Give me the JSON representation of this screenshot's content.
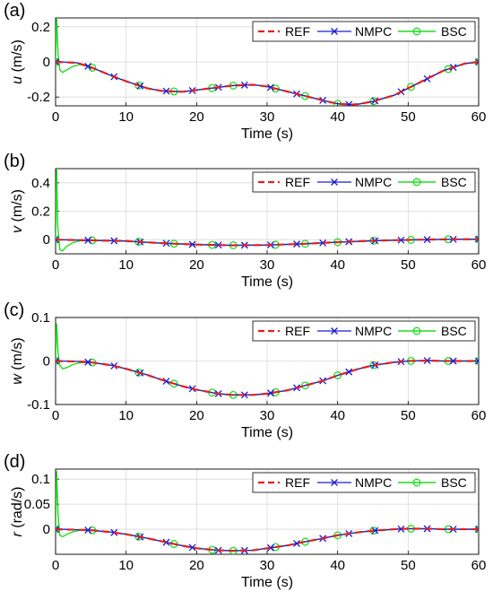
{
  "legend_labels": [
    "REF",
    "NMPC",
    "BSC"
  ],
  "colors": {
    "REF": "#e02020",
    "NMPC": "#1a1ad6",
    "BSC": "#1fdc1f",
    "grid": "#d8d8d8",
    "axis": "#000000"
  },
  "chart_data": [
    {
      "type": "line",
      "panel_label": "(a)",
      "ylabel_var": "u",
      "ylabel_unit": " (m/s)",
      "xlabel": "Time (s)",
      "xlim": [
        0,
        60
      ],
      "ylim": [
        -0.25,
        0.25
      ],
      "xticks": [
        0,
        10,
        20,
        30,
        40,
        50,
        60
      ],
      "yticks": [
        -0.2,
        0,
        0.2
      ],
      "ytick_labels": [
        "-0.2",
        "0",
        "0.2"
      ],
      "grid": true,
      "legend_position": "top-right",
      "series": [
        {
          "name": "REF",
          "x": [
            0,
            3,
            5,
            8,
            10,
            13,
            15,
            18,
            20,
            23,
            25,
            28,
            30,
            33,
            35,
            38,
            40,
            42,
            43,
            45,
            48,
            50,
            53,
            55,
            58,
            60
          ],
          "y": [
            0.0,
            -0.005,
            -0.03,
            -0.08,
            -0.11,
            -0.15,
            -0.165,
            -0.17,
            -0.16,
            -0.145,
            -0.135,
            -0.13,
            -0.14,
            -0.17,
            -0.19,
            -0.22,
            -0.238,
            -0.243,
            -0.24,
            -0.225,
            -0.19,
            -0.15,
            -0.09,
            -0.05,
            -0.01,
            0.0
          ]
        },
        {
          "name": "NMPC",
          "x": [
            0,
            0.3,
            0.8,
            1.5,
            3,
            5,
            8,
            10,
            13,
            15,
            18,
            20,
            23,
            25,
            28,
            30,
            33,
            35,
            38,
            40,
            42,
            43,
            45,
            48,
            50,
            53,
            55,
            58,
            60
          ],
          "y": [
            0.0,
            0.005,
            0.0,
            -0.002,
            -0.005,
            -0.03,
            -0.08,
            -0.11,
            -0.15,
            -0.165,
            -0.17,
            -0.16,
            -0.145,
            -0.135,
            -0.13,
            -0.14,
            -0.17,
            -0.19,
            -0.22,
            -0.238,
            -0.243,
            -0.24,
            -0.225,
            -0.19,
            -0.15,
            -0.09,
            -0.05,
            -0.01,
            0.0
          ],
          "markers_x": [
            0,
            4.6,
            8.3,
            12,
            15.7,
            19.4,
            23.1,
            26.8,
            30.5,
            34.2,
            37.9,
            41.6,
            45.3,
            49,
            52.7,
            56.4,
            60
          ]
        },
        {
          "name": "BSC",
          "x": [
            0,
            0.15,
            0.35,
            0.6,
            1,
            1.6,
            2.5,
            3.5,
            5,
            8,
            10,
            13,
            15,
            18,
            20,
            23,
            25,
            28,
            30,
            33,
            35,
            38,
            40,
            42,
            43,
            45,
            48,
            50,
            53,
            55,
            58,
            60
          ],
          "y": [
            0.0,
            0.25,
            0.05,
            -0.045,
            -0.06,
            -0.045,
            -0.025,
            -0.015,
            -0.03,
            -0.08,
            -0.11,
            -0.15,
            -0.165,
            -0.17,
            -0.16,
            -0.145,
            -0.135,
            -0.13,
            -0.14,
            -0.17,
            -0.19,
            -0.22,
            -0.238,
            -0.243,
            -0.24,
            -0.225,
            -0.19,
            -0.15,
            -0.09,
            -0.05,
            -0.01,
            0.0
          ],
          "markers_x": [
            0,
            5.2,
            11.8,
            16.8,
            22.2,
            25.2,
            31.2,
            35.4,
            40,
            45.1,
            50.4,
            55.7,
            60
          ]
        }
      ]
    },
    {
      "type": "line",
      "panel_label": "(b)",
      "ylabel_var": "v",
      "ylabel_unit": " (m/s)",
      "xlabel": "Time (s)",
      "xlim": [
        0,
        60
      ],
      "ylim": [
        -0.1,
        0.5
      ],
      "xticks": [
        0,
        10,
        20,
        30,
        40,
        50,
        60
      ],
      "yticks": [
        0,
        0.2,
        0.4
      ],
      "ytick_labels": [
        "0",
        "0.2",
        "0.4"
      ],
      "grid": true,
      "legend_position": "top-right",
      "series": [
        {
          "name": "REF",
          "x": [
            0,
            5,
            10,
            15,
            20,
            25,
            30,
            35,
            40,
            45,
            50,
            55,
            60
          ],
          "y": [
            0.0,
            -0.005,
            -0.01,
            -0.025,
            -0.035,
            -0.04,
            -0.038,
            -0.03,
            -0.018,
            -0.008,
            -0.002,
            0.002,
            0.003
          ]
        },
        {
          "name": "NMPC",
          "x": [
            0,
            5,
            10,
            15,
            20,
            25,
            30,
            35,
            40,
            45,
            50,
            55,
            60
          ],
          "y": [
            0.0,
            -0.005,
            -0.01,
            -0.025,
            -0.035,
            -0.04,
            -0.038,
            -0.03,
            -0.018,
            -0.008,
            -0.002,
            0.002,
            0.003
          ],
          "markers_x": [
            0,
            4.6,
            8.3,
            12,
            15.7,
            19.4,
            23.1,
            26.8,
            30.5,
            34.2,
            37.9,
            41.6,
            45.3,
            49,
            52.7,
            56.4,
            60
          ]
        },
        {
          "name": "BSC",
          "x": [
            0,
            0.15,
            0.3,
            0.6,
            1,
            1.5,
            2.5,
            3.5,
            5,
            10,
            15,
            20,
            25,
            30,
            35,
            40,
            45,
            50,
            55,
            60
          ],
          "y": [
            0.0,
            0.5,
            0.1,
            -0.07,
            -0.08,
            -0.05,
            -0.02,
            -0.008,
            -0.005,
            -0.01,
            -0.025,
            -0.035,
            -0.04,
            -0.038,
            -0.03,
            -0.018,
            -0.008,
            -0.002,
            0.002,
            0.003
          ],
          "markers_x": [
            0,
            5.2,
            11.8,
            16.8,
            22.2,
            25.2,
            31.2,
            35.4,
            40,
            45.1,
            50.4,
            55.7,
            60
          ]
        }
      ]
    },
    {
      "type": "line",
      "panel_label": "(c)",
      "ylabel_var": "w",
      "ylabel_unit": " (m/s)",
      "xlabel": "Time (s)",
      "xlim": [
        0,
        60
      ],
      "ylim": [
        -0.1,
        0.1
      ],
      "xticks": [
        0,
        10,
        20,
        30,
        40,
        50,
        60
      ],
      "yticks": [
        -0.1,
        0,
        0.1
      ],
      "ytick_labels": [
        "-0.1",
        "0",
        "0.1"
      ],
      "grid": true,
      "legend_position": "top-right",
      "series": [
        {
          "name": "REF",
          "x": [
            0,
            3,
            5,
            8,
            10,
            13,
            15,
            18,
            20,
            23,
            25,
            28,
            30,
            33,
            35,
            38,
            40,
            43,
            45,
            48,
            50,
            53,
            55,
            58,
            60
          ],
          "y": [
            0.0,
            -0.001,
            -0.003,
            -0.01,
            -0.018,
            -0.032,
            -0.043,
            -0.058,
            -0.066,
            -0.075,
            -0.078,
            -0.078,
            -0.075,
            -0.067,
            -0.058,
            -0.045,
            -0.033,
            -0.018,
            -0.01,
            -0.003,
            0.0,
            0.001,
            0.0,
            0.0,
            0.0
          ]
        },
        {
          "name": "NMPC",
          "x": [
            0,
            0.3,
            0.8,
            3,
            5,
            8,
            10,
            13,
            15,
            18,
            20,
            23,
            25,
            28,
            30,
            33,
            35,
            38,
            40,
            43,
            45,
            48,
            50,
            53,
            55,
            58,
            60
          ],
          "y": [
            0.0,
            0.002,
            0.0,
            -0.001,
            -0.003,
            -0.01,
            -0.018,
            -0.032,
            -0.043,
            -0.058,
            -0.066,
            -0.075,
            -0.078,
            -0.078,
            -0.075,
            -0.067,
            -0.058,
            -0.045,
            -0.033,
            -0.018,
            -0.01,
            -0.003,
            0.0,
            0.001,
            0.0,
            0.0,
            0.0
          ],
          "markers_x": [
            0,
            4.6,
            8.3,
            12,
            15.7,
            19.4,
            23.1,
            26.8,
            30.5,
            34.2,
            37.9,
            41.6,
            45.3,
            49,
            52.7,
            56.4,
            60
          ]
        },
        {
          "name": "BSC",
          "x": [
            0,
            0.15,
            0.35,
            0.6,
            1,
            1.6,
            2.5,
            3.5,
            5,
            8,
            10,
            13,
            15,
            18,
            20,
            23,
            25,
            28,
            30,
            33,
            35,
            38,
            40,
            43,
            45,
            48,
            50,
            53,
            55,
            58,
            60
          ],
          "y": [
            0.0,
            0.085,
            0.02,
            -0.01,
            -0.018,
            -0.015,
            -0.008,
            -0.004,
            -0.003,
            -0.01,
            -0.018,
            -0.032,
            -0.043,
            -0.058,
            -0.066,
            -0.075,
            -0.078,
            -0.078,
            -0.075,
            -0.067,
            -0.058,
            -0.045,
            -0.033,
            -0.018,
            -0.01,
            -0.003,
            0.0,
            0.001,
            0.0,
            0.0,
            0.0
          ],
          "markers_x": [
            0,
            5.2,
            11.8,
            16.8,
            22.2,
            25.2,
            31.2,
            35.4,
            40,
            45.1,
            50.4,
            55.7,
            60
          ]
        }
      ]
    },
    {
      "type": "line",
      "panel_label": "(d)",
      "ylabel_var": "r",
      "ylabel_unit": " (rad/s)",
      "xlabel": "Time (s)",
      "xlim": [
        0,
        60
      ],
      "ylim": [
        -0.05,
        0.12
      ],
      "xticks": [
        0,
        10,
        20,
        30,
        40,
        50,
        60
      ],
      "yticks": [
        0,
        0.05,
        0.1
      ],
      "ytick_labels": [
        "0",
        "0.05",
        "0.1"
      ],
      "grid": true,
      "legend_position": "top-right",
      "series": [
        {
          "name": "REF",
          "x": [
            0,
            3,
            5,
            8,
            10,
            13,
            15,
            18,
            20,
            23,
            25,
            28,
            30,
            33,
            35,
            38,
            40,
            43,
            45,
            48,
            50,
            53,
            55,
            58,
            60
          ],
          "y": [
            0.0,
            -0.001,
            -0.002,
            -0.006,
            -0.01,
            -0.018,
            -0.024,
            -0.033,
            -0.038,
            -0.042,
            -0.043,
            -0.042,
            -0.038,
            -0.032,
            -0.026,
            -0.018,
            -0.012,
            -0.006,
            -0.003,
            0.0,
            0.001,
            0.001,
            0.0,
            0.0,
            0.0
          ]
        },
        {
          "name": "NMPC",
          "x": [
            0,
            0.3,
            0.8,
            3,
            5,
            8,
            10,
            13,
            15,
            18,
            20,
            23,
            25,
            28,
            30,
            33,
            35,
            38,
            40,
            43,
            45,
            48,
            50,
            53,
            55,
            58,
            60
          ],
          "y": [
            0.0,
            0.002,
            0.0,
            -0.001,
            -0.002,
            -0.006,
            -0.01,
            -0.018,
            -0.024,
            -0.033,
            -0.038,
            -0.042,
            -0.043,
            -0.042,
            -0.038,
            -0.032,
            -0.026,
            -0.018,
            -0.012,
            -0.006,
            -0.003,
            0.0,
            0.001,
            0.001,
            0.0,
            0.0,
            0.0
          ],
          "markers_x": [
            0,
            4.6,
            8.3,
            12,
            15.7,
            19.4,
            23.1,
            26.8,
            30.5,
            34.2,
            37.9,
            41.6,
            45.3,
            49,
            52.7,
            56.4,
            60
          ]
        },
        {
          "name": "BSC",
          "x": [
            0,
            0.15,
            0.35,
            0.6,
            1,
            1.6,
            2.5,
            3.5,
            5,
            8,
            10,
            13,
            15,
            18,
            20,
            23,
            25,
            28,
            30,
            33,
            35,
            38,
            40,
            43,
            45,
            48,
            50,
            53,
            55,
            58,
            60
          ],
          "y": [
            0.0,
            0.115,
            0.03,
            -0.012,
            -0.015,
            -0.01,
            -0.005,
            -0.002,
            -0.002,
            -0.006,
            -0.01,
            -0.018,
            -0.024,
            -0.033,
            -0.038,
            -0.042,
            -0.043,
            -0.042,
            -0.038,
            -0.032,
            -0.026,
            -0.018,
            -0.012,
            -0.006,
            -0.003,
            0.0,
            0.001,
            0.001,
            0.0,
            0.0,
            0.0
          ],
          "markers_x": [
            0,
            5.2,
            11.8,
            16.8,
            22.2,
            25.2,
            31.2,
            35.4,
            40,
            45.1,
            50.4,
            55.7,
            60
          ]
        }
      ]
    }
  ]
}
